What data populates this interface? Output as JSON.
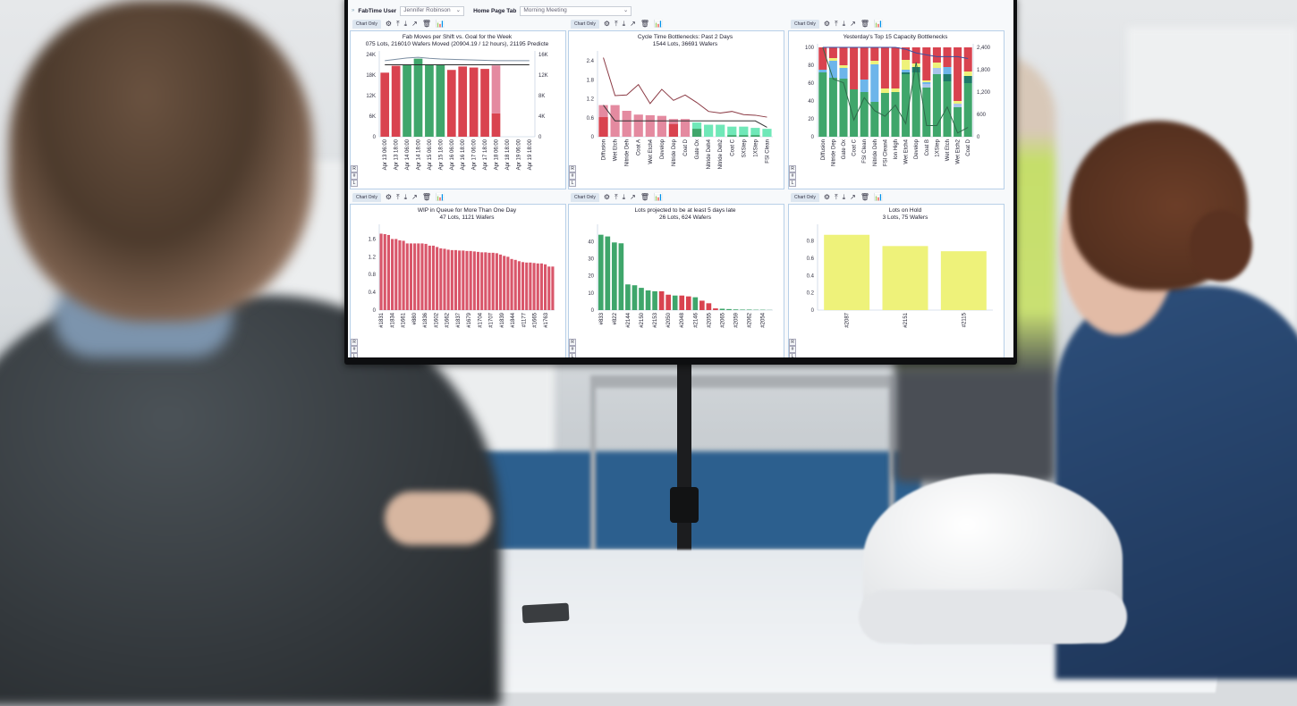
{
  "topbar": {
    "expand_icon": "double-chevron-right",
    "user_label": "FabTime User",
    "user_value": "Jennifer Robinson",
    "tab_label": "Home Page Tab",
    "tab_value": "Morning Meeting"
  },
  "panel_controls": {
    "chart_only": "Chart Only",
    "icons": [
      "gear-icon",
      "pin-icon",
      "download-icon",
      "export-icon",
      "trash-icon",
      "chart-icon"
    ],
    "side_buttons": [
      "R",
      "#",
      "L"
    ]
  },
  "colors": {
    "red": "#d9434f",
    "pink": "#e48aa0",
    "green": "#3fa66b",
    "mint": "#6fe8b8",
    "yellow": "#eef27a",
    "lightblue": "#6db5ea"
  },
  "chart_data": [
    {
      "type": "bar",
      "title": "Fab Moves per Shift vs. Goal for the Week",
      "subtitle": "075 Lots, 216010 Wafers Moved (20904.19 / 12 hours), 21195 Predicte",
      "categories": [
        "Apr 13 06:00",
        "Apr 13 18:00",
        "Apr 14 06:00",
        "Apr 14 18:00",
        "Apr 15 06:00",
        "Apr 15 18:00",
        "Apr 16 06:00",
        "Apr 16 18:00",
        "Apr 17 06:00",
        "Apr 17 18:00",
        "Apr 18 06:00",
        "Apr 18 18:00",
        "Apr 19 06:00",
        "Apr 19 18:00"
      ],
      "ylim": [
        0,
        24000
      ],
      "yticks": [
        0,
        6000,
        12000,
        18000,
        24000
      ],
      "ytick_labels": [
        "0",
        "6K",
        "12K",
        "18K",
        "24K"
      ],
      "y2lim": [
        0,
        16000
      ],
      "y2ticks": [
        0,
        4000,
        8000,
        12000,
        16000
      ],
      "y2tick_labels": [
        "0",
        "4K",
        "8K",
        "12K",
        "16K"
      ],
      "series": [
        {
          "values": [
            18700,
            20700,
            21000,
            22800,
            21000,
            21000,
            19500,
            20500,
            20200,
            19800,
            6800,
            0,
            0,
            0
          ],
          "colors": [
            "#d9434f",
            "#d9434f",
            "#3fa66b",
            "#3fa66b",
            "#3fa66b",
            "#3fa66b",
            "#d9434f",
            "#d9434f",
            "#d9434f",
            "#d9434f",
            "#d9434f",
            "#d9434f",
            "#d9434f",
            "#d9434f"
          ]
        },
        {
          "values": [
            0,
            0,
            0,
            0,
            0,
            0,
            0,
            0,
            0,
            0,
            14000,
            0,
            0,
            0
          ],
          "color": "#e48aa0"
        }
      ],
      "lines": [
        {
          "values": [
            21000,
            21000,
            21000,
            21000,
            21000,
            21000,
            21000,
            21000,
            21000,
            21000,
            21000,
            21000,
            21000,
            21000
          ],
          "color": "#2a2a2a"
        },
        {
          "values": [
            22200,
            22600,
            23000,
            23200,
            22900,
            22700,
            22600,
            22500,
            22400,
            22300,
            22200,
            22200,
            22200,
            22200
          ],
          "color": "#7d8fa3"
        }
      ]
    },
    {
      "type": "bar",
      "title": "Cycle Time Bottlenecks: Past 2 Days",
      "subtitle": "1544 Lots, 36691 Wafers",
      "categories": [
        "Diffusion",
        "Wet Etch",
        "Nitride Deh",
        "Coat A",
        "Wet Etch4",
        "Develop",
        "Nitride Dep",
        "Coat D",
        "Gate Ox",
        "Nitride Deh4",
        "Nitride Deh2",
        "Coat C",
        "SXStep",
        "1XStep",
        "FSI Clean"
      ],
      "ylim": [
        0,
        2.6
      ],
      "yticks": [
        0,
        0.6,
        1.2,
        1.8,
        2.4
      ],
      "ytick_labels": [
        "0",
        "0.6",
        "1.2",
        "1.8",
        "2.4"
      ],
      "overlay": true,
      "series": [
        {
          "values": [
            1.0,
            1.0,
            0.82,
            0.7,
            0.68,
            0.66,
            0.56,
            0.56,
            0.45,
            0.38,
            0.38,
            0.32,
            0.32,
            0.28,
            0.25
          ],
          "colors": [
            "#e48aa0",
            "#e48aa0",
            "#e48aa0",
            "#e48aa0",
            "#e48aa0",
            "#e48aa0",
            "#e48aa0",
            "#e48aa0",
            "#6fe8b8",
            "#6fe8b8",
            "#6fe8b8",
            "#6fe8b8",
            "#6fe8b8",
            "#6fe8b8",
            "#6fe8b8"
          ]
        },
        {
          "values": [
            0.62,
            0,
            0,
            0,
            0,
            0,
            0.4,
            0,
            0.25,
            0,
            0,
            0.05,
            0.05,
            0.05,
            0
          ],
          "colors": [
            "#d9434f",
            "#d9434f",
            "#d9434f",
            "#d9434f",
            "#d9434f",
            "#d9434f",
            "#d9434f",
            "#d9434f",
            "#3fa66b",
            "#3fa66b",
            "#3fa66b",
            "#3fa66b",
            "#3fa66b",
            "#3fa66b",
            "#3fa66b"
          ]
        }
      ],
      "lines": [
        {
          "values": [
            2.5,
            1.3,
            1.32,
            1.65,
            1.05,
            1.5,
            1.15,
            1.32,
            1.08,
            0.8,
            0.75,
            0.8,
            0.7,
            0.68,
            0.62
          ],
          "color": "#8b3a44"
        },
        {
          "values": [
            1.0,
            0.5,
            0.5,
            0.5,
            0.5,
            0.5,
            0.5,
            0.5,
            0.5,
            0.5,
            0.5,
            0.5,
            0.5,
            0.5,
            0.3
          ],
          "color": "#333333"
        }
      ]
    },
    {
      "type": "bar",
      "title": "Yesterday's Top 15 Capacity Bottlenecks",
      "subtitle": "",
      "categories": [
        "Diffusion",
        "Nitride Dep",
        "Gate Ox",
        "Coat C",
        "FSI Clean",
        "Nitride Deh",
        "FSI Clean4",
        "Ion High",
        "Wet Etch4",
        "Develop",
        "Coat B",
        "1XStep",
        "Wet Etch",
        "Wet Etch2",
        "Coat D"
      ],
      "ylim": [
        0,
        100
      ],
      "yticks": [
        0,
        20,
        40,
        60,
        80,
        100
      ],
      "ytick_labels": [
        "0",
        "20",
        "40",
        "60",
        "80",
        "100"
      ],
      "y2lim": [
        0,
        2400
      ],
      "y2ticks": [
        0,
        600,
        1200,
        1800,
        2400
      ],
      "y2tick_labels": [
        "0",
        "600",
        "1,200",
        "1,800",
        "2,400"
      ],
      "stacked": true,
      "series": [
        {
          "values": [
            72,
            66,
            65,
            53,
            50,
            39,
            49,
            50,
            70,
            72,
            55,
            70,
            62,
            33,
            60
          ],
          "color": "#3fa66b"
        },
        {
          "values": [
            0,
            0,
            0,
            0,
            0,
            0,
            0,
            0,
            2,
            6,
            0,
            0,
            8,
            0,
            8
          ],
          "color": "#1f7a6a"
        },
        {
          "values": [
            0,
            0,
            0,
            0,
            0,
            0,
            0,
            0,
            0,
            0,
            4,
            7,
            0,
            4,
            0
          ],
          "color": "#a9c4ea"
        },
        {
          "values": [
            3,
            19,
            12,
            0,
            14,
            42,
            0,
            0,
            3,
            0,
            2,
            0,
            8,
            0,
            0
          ],
          "color": "#6db5ea"
        },
        {
          "values": [
            0,
            3,
            3,
            0,
            0,
            4,
            5,
            4,
            11,
            4,
            2,
            6,
            0,
            3,
            5
          ],
          "color": "#eef27a"
        },
        {
          "values": [
            25,
            12,
            20,
            47,
            36,
            15,
            46,
            46,
            14,
            18,
            37,
            17,
            22,
            60,
            27
          ],
          "color": "#d9434f"
        }
      ],
      "lines": [
        {
          "values": [
            2400,
            1550,
            1450,
            450,
            1050,
            700,
            550,
            850,
            350,
            2000,
            300,
            300,
            800,
            100,
            250
          ],
          "color": "#2e6b4a",
          "axis": "y2"
        },
        {
          "values": [
            2400,
            2400,
            2400,
            2400,
            2400,
            2400,
            2400,
            2400,
            2350,
            2250,
            2200,
            2150,
            2150,
            2150,
            2100
          ],
          "color": "#3a4fa0",
          "axis": "y2"
        }
      ]
    },
    {
      "type": "bar",
      "title": "WIP in Queue for More Than One Day",
      "subtitle": "47 Lots, 1121 Wafers",
      "tick_labels": [
        "#1831",
        "#1834",
        "#1661",
        "#880",
        "#1836",
        "#1602",
        "#1662",
        "#1837",
        "#1679",
        "#1704",
        "#1707",
        "#1839",
        "#1844",
        "#1177",
        "#1665",
        "#1763"
      ],
      "ylim": [
        0,
        1.85
      ],
      "yticks": [
        0,
        0.4,
        0.8,
        1.2,
        1.6
      ],
      "ytick_labels": [
        "0",
        "0.4",
        "0.8",
        "1.2",
        "1.6"
      ],
      "series": [
        {
          "values": [
            1.72,
            1.71,
            1.69,
            1.6,
            1.6,
            1.57,
            1.56,
            1.5,
            1.5,
            1.5,
            1.5,
            1.5,
            1.49,
            1.45,
            1.45,
            1.42,
            1.39,
            1.38,
            1.36,
            1.35,
            1.35,
            1.34,
            1.34,
            1.33,
            1.33,
            1.32,
            1.31,
            1.3,
            1.3,
            1.29,
            1.29,
            1.28,
            1.25,
            1.22,
            1.2,
            1.15,
            1.13,
            1.1,
            1.08,
            1.07,
            1.07,
            1.06,
            1.05,
            1.05,
            1.03,
            0.98,
            0.98
          ],
          "color": "#d9566a"
        }
      ]
    },
    {
      "type": "bar",
      "title": "Lots projected to be at least 5 days late",
      "subtitle": "26 Lots, 624 Wafers",
      "tick_labels": [
        "#833",
        "#822",
        "#2144",
        "#2150",
        "#2153",
        "#2050",
        "#2048",
        "#2146",
        "#2055",
        "#2065",
        "#2059",
        "#2062",
        "#2054"
      ],
      "ylim": [
        0,
        48
      ],
      "yticks": [
        0,
        10,
        20,
        30,
        40
      ],
      "ytick_labels": [
        "0",
        "10",
        "20",
        "30",
        "40"
      ],
      "series": [
        {
          "values": [
            44,
            43,
            39.5,
            39,
            15,
            14.5,
            13,
            11.5,
            11,
            11,
            9,
            8.5,
            8.5,
            8,
            7.5,
            5.5,
            4,
            1,
            0.8,
            0.6,
            0.4,
            0.3,
            0.3,
            0.2,
            0.2,
            0.1
          ],
          "colors": [
            "#3fa66b",
            "#3fa66b",
            "#3fa66b",
            "#3fa66b",
            "#3fa66b",
            "#3fa66b",
            "#3fa66b",
            "#3fa66b",
            "#3fa66b",
            "#d9434f",
            "#d9434f",
            "#3fa66b",
            "#d9434f",
            "#d9434f",
            "#3fa66b",
            "#d9434f",
            "#d9434f",
            "#d9434f",
            "#3fa66b",
            "#3fa66b",
            "#3fa66b",
            "#3fa66b",
            "#3fa66b",
            "#3fa66b",
            "#3fa66b",
            "#3fa66b"
          ]
        }
      ]
    },
    {
      "type": "bar",
      "title": "Lots on Hold",
      "subtitle": "3 Lots, 75 Wafers",
      "categories": [
        "#2087",
        "#2151",
        "#2115"
      ],
      "ylim": [
        0,
        0.95
      ],
      "yticks": [
        0,
        0.2,
        0.4,
        0.6,
        0.8
      ],
      "ytick_labels": [
        "0",
        "0.2",
        "0.4",
        "0.6",
        "0.8"
      ],
      "series": [
        {
          "values": [
            0.87,
            0.74,
            0.68
          ],
          "color": "#eef27a"
        }
      ]
    }
  ]
}
